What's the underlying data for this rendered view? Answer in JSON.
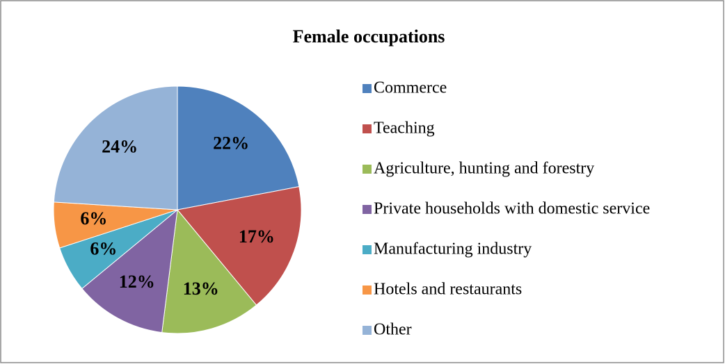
{
  "chart_data": {
    "type": "pie",
    "title": "Female occupations",
    "categories": [
      "Commerce",
      "Teaching",
      "Agriculture, hunting and forestry",
      "Private households with domestic service",
      "Manufacturing industry",
      "Hotels and restaurants",
      "Other"
    ],
    "values": [
      22,
      17,
      13,
      12,
      6,
      6,
      24
    ],
    "value_labels": [
      "22%",
      "17%",
      "13%",
      "12%",
      "6%",
      "6%",
      "24%"
    ],
    "colors": [
      "#4f81bd",
      "#c0504d",
      "#9bbb59",
      "#8064a2",
      "#4bacc6",
      "#f79646",
      "#95b3d7"
    ],
    "legend": "right"
  }
}
